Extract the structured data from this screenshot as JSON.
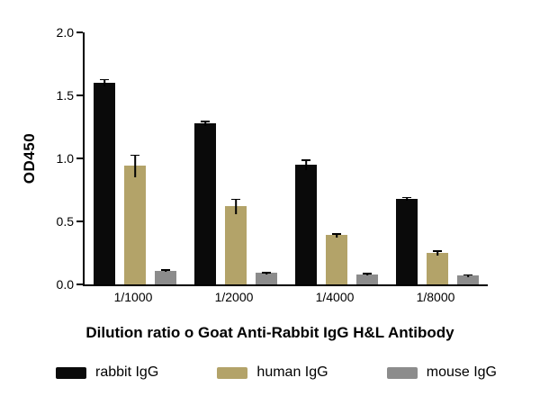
{
  "chart_data": {
    "type": "bar",
    "categories": [
      "1/1000",
      "1/2000",
      "1/4000",
      "1/8000"
    ],
    "series": [
      {
        "name": "rabbit IgG",
        "color": "#0a0a0a",
        "values": [
          1.6,
          1.28,
          0.95,
          0.68
        ],
        "errors": [
          0.03,
          0.02,
          0.04,
          0.015
        ]
      },
      {
        "name": "human IgG",
        "color": "#b3a369",
        "values": [
          0.94,
          0.62,
          0.39,
          0.25
        ],
        "errors": [
          0.09,
          0.06,
          0.015,
          0.02
        ]
      },
      {
        "name": "mouse IgG",
        "color": "#8c8c8c",
        "values": [
          0.11,
          0.09,
          0.08,
          0.07
        ],
        "errors": [
          0.012,
          0.008,
          0.008,
          0.008
        ]
      }
    ],
    "title": "",
    "xlabel": "Dilution ratio o Goat Anti-Rabbit IgG H&L Antibody",
    "ylabel": "OD450",
    "ylim": [
      0,
      2.0
    ],
    "yticks": [
      0.0,
      0.5,
      1.0,
      1.5,
      2.0
    ],
    "grid": false,
    "legend_position": "bottom"
  }
}
